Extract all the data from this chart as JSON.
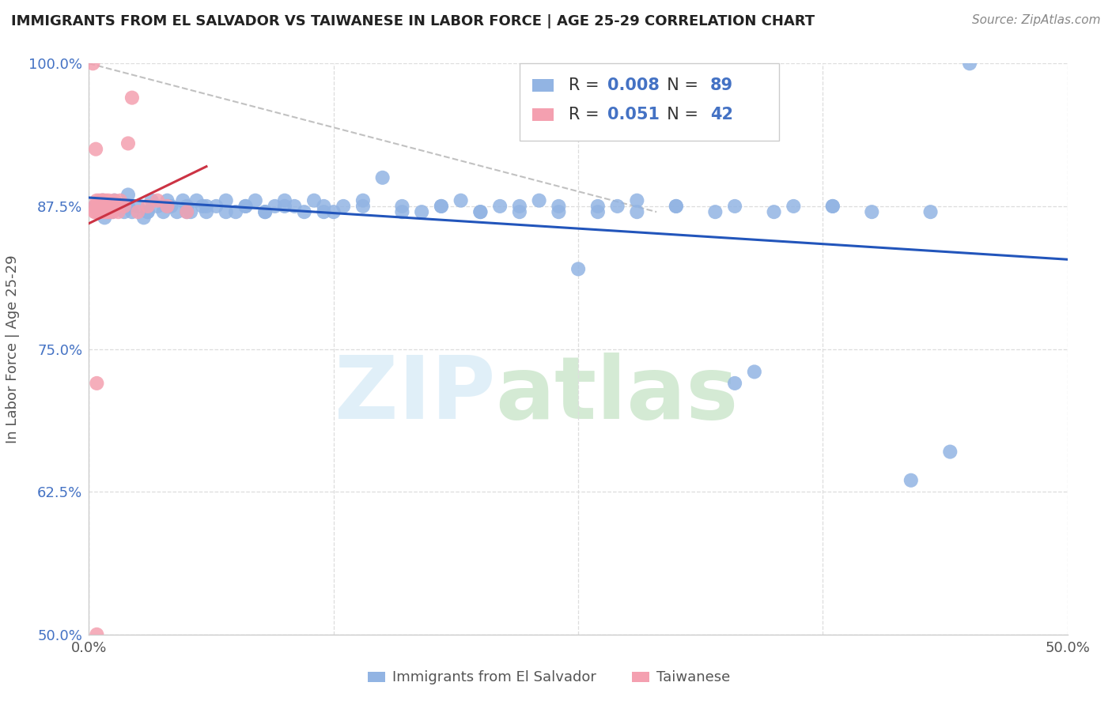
{
  "title": "IMMIGRANTS FROM EL SALVADOR VS TAIWANESE IN LABOR FORCE | AGE 25-29 CORRELATION CHART",
  "source": "Source: ZipAtlas.com",
  "ylabel": "In Labor Force | Age 25-29",
  "xlim": [
    0.0,
    50.0
  ],
  "ylim": [
    50.0,
    100.0
  ],
  "xtick_positions": [
    0.0,
    12.5,
    25.0,
    37.5,
    50.0
  ],
  "xtick_labels": [
    "0.0%",
    "",
    "",
    "",
    "50.0%"
  ],
  "ytick_positions": [
    50.0,
    62.5,
    75.0,
    87.5,
    100.0
  ],
  "ytick_labels": [
    "50.0%",
    "62.5%",
    "75.0%",
    "87.5%",
    "100.0%"
  ],
  "legend_labels": [
    "Immigrants from El Salvador",
    "Taiwanese"
  ],
  "blue_R": "0.008",
  "blue_N": "89",
  "pink_R": "0.051",
  "pink_N": "42",
  "blue_color": "#92B4E3",
  "pink_color": "#F4A0B0",
  "blue_line_color": "#2255BB",
  "pink_line_color": "#CC3344",
  "ref_line_color": "#BBBBBB",
  "tick_color": "#4472C4",
  "label_color": "#555555",
  "title_color": "#222222",
  "source_color": "#888888",
  "grid_color": "#DDDDDD",
  "blue_x": [
    0.3,
    0.5,
    0.7,
    0.8,
    1.0,
    1.2,
    1.3,
    1.5,
    1.8,
    2.0,
    2.2,
    2.5,
    2.8,
    3.0,
    3.2,
    3.5,
    3.8,
    4.0,
    4.2,
    4.5,
    4.8,
    5.0,
    5.2,
    5.5,
    5.8,
    6.0,
    6.5,
    7.0,
    7.5,
    8.0,
    8.5,
    9.0,
    9.5,
    10.0,
    10.5,
    11.0,
    11.5,
    12.0,
    12.5,
    13.0,
    14.0,
    15.0,
    16.0,
    17.0,
    18.0,
    19.0,
    20.0,
    21.0,
    22.0,
    23.0,
    24.0,
    25.0,
    26.0,
    27.0,
    28.0,
    30.0,
    32.0,
    33.0,
    34.0,
    35.0,
    36.0,
    38.0,
    40.0,
    42.0,
    44.0,
    1.0,
    2.0,
    3.0,
    4.0,
    5.0,
    6.0,
    7.0,
    8.0,
    9.0,
    10.0,
    12.0,
    14.0,
    16.0,
    18.0,
    20.0,
    22.0,
    24.0,
    26.0,
    45.0,
    30.0,
    28.0,
    33.0,
    38.0,
    43.0
  ],
  "blue_y": [
    87.5,
    87.0,
    88.0,
    86.5,
    87.5,
    87.0,
    88.0,
    87.5,
    87.0,
    88.5,
    87.0,
    87.5,
    86.5,
    87.0,
    88.0,
    87.5,
    87.0,
    88.0,
    87.5,
    87.0,
    88.0,
    87.5,
    87.0,
    88.0,
    87.5,
    87.0,
    87.5,
    88.0,
    87.0,
    87.5,
    88.0,
    87.0,
    87.5,
    88.0,
    87.5,
    87.0,
    88.0,
    87.5,
    87.0,
    87.5,
    88.0,
    90.0,
    87.5,
    87.0,
    87.5,
    88.0,
    87.0,
    87.5,
    87.0,
    88.0,
    87.5,
    82.0,
    87.0,
    87.5,
    88.0,
    87.5,
    87.0,
    87.5,
    73.0,
    87.0,
    87.5,
    87.5,
    87.0,
    63.5,
    66.0,
    87.0,
    87.5,
    87.0,
    87.5,
    87.0,
    87.5,
    87.0,
    87.5,
    87.0,
    87.5,
    87.0,
    87.5,
    87.0,
    87.5,
    87.0,
    87.5,
    87.0,
    87.5,
    100.0,
    87.5,
    87.0,
    72.0,
    87.5,
    87.0
  ],
  "pink_x": [
    0.2,
    0.3,
    0.35,
    0.4,
    0.45,
    0.5,
    0.55,
    0.6,
    0.65,
    0.7,
    0.75,
    0.8,
    0.85,
    0.9,
    0.95,
    1.0,
    1.1,
    1.2,
    1.3,
    1.4,
    1.5,
    1.6,
    1.8,
    2.0,
    2.2,
    2.5,
    3.0,
    3.5,
    4.0,
    5.0,
    0.3,
    0.4,
    0.5,
    0.6,
    0.7,
    0.8,
    0.9,
    1.0,
    0.4,
    0.5,
    0.3,
    0.4
  ],
  "pink_y": [
    100.0,
    87.5,
    92.5,
    88.0,
    87.0,
    87.5,
    88.0,
    87.0,
    87.5,
    88.0,
    87.0,
    87.5,
    88.0,
    87.0,
    87.5,
    88.0,
    87.5,
    87.0,
    88.0,
    87.5,
    87.0,
    88.0,
    87.5,
    93.0,
    97.0,
    87.0,
    87.5,
    88.0,
    87.5,
    87.0,
    87.0,
    87.5,
    87.0,
    87.5,
    88.0,
    87.0,
    87.5,
    87.0,
    72.0,
    87.5,
    87.0,
    50.0
  ],
  "diag_line_x": [
    0.0,
    29.0
  ],
  "diag_line_y": [
    100.0,
    87.0
  ]
}
